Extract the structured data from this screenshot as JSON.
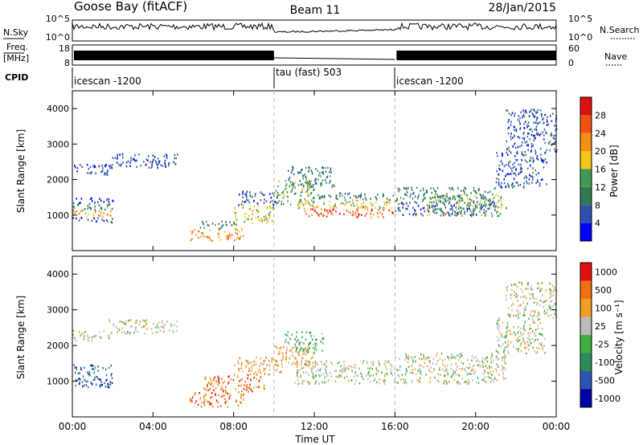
{
  "header": {
    "station": "Goose Bay (fitACF)",
    "beam": "Beam 11",
    "date": "28/Jan/2015"
  },
  "panels": {
    "nsky": {
      "label": "N.Sky",
      "ticks": [
        "10^5",
        "10^0"
      ]
    },
    "nsearch": {
      "label": "N.Search",
      "ticks": [
        "10^5",
        "10^0"
      ]
    },
    "freq": {
      "label1": "Freq.",
      "label2": "[MHz]",
      "ticks": [
        "18",
        "8"
      ]
    },
    "nave": {
      "label": "Nave",
      "ticks": [
        "60",
        "0"
      ]
    },
    "cpid": {
      "label": "CPID",
      "segments": [
        {
          "start": 0,
          "end": 10,
          "text": "icescan -1200"
        },
        {
          "start": 10,
          "end": 16,
          "text": "tau (fast) 503"
        },
        {
          "start": 16,
          "end": 24,
          "text": "icescan -1200"
        }
      ]
    }
  },
  "colors": {
    "power": [
      "#0000ff",
      "#2e4fb0",
      "#2f7a52",
      "#3e9b55",
      "#f5c518",
      "#f59010",
      "#f05010",
      "#e01010"
    ],
    "velocity": [
      "#0000aa",
      "#2a55b5",
      "#2f8a5a",
      "#3fb040",
      "#bbbbbb",
      "#f0a020",
      "#f07010",
      "#e01010"
    ],
    "bg": "#ffffff"
  },
  "chart_data": [
    {
      "type": "heatmap",
      "name": "Power",
      "ylabel": "Slant Range [km]",
      "xlabel": "",
      "xlim": [
        0,
        24
      ],
      "ylim": [
        0,
        4500
      ],
      "y_ticks": [
        1000,
        2000,
        3000,
        4000
      ],
      "x_ticks": [
        0,
        4,
        8,
        12,
        16,
        20,
        24
      ],
      "x_tick_labels": [
        "00:00",
        "04:00",
        "08:00",
        "12:00",
        "16:00",
        "20:00",
        "00:00"
      ],
      "colorbar": {
        "label": "Power [dB]",
        "ticks": [
          "4",
          "8",
          "12",
          "16",
          "20",
          "24",
          "28"
        ]
      },
      "bands": [
        {
          "t0": 0.0,
          "t1": 1.8,
          "r0": 2150,
          "r1": 2450,
          "level": 1
        },
        {
          "t0": 1.8,
          "t1": 5.2,
          "r0": 2350,
          "r1": 2750,
          "level": 1
        },
        {
          "t0": 0.0,
          "t1": 2.0,
          "r0": 1350,
          "r1": 1500,
          "level": 0
        },
        {
          "t0": 0.0,
          "t1": 2.0,
          "r0": 1150,
          "r1": 1350,
          "level": 2
        },
        {
          "t0": 0.0,
          "t1": 2.0,
          "r0": 950,
          "r1": 1150,
          "level": 5
        },
        {
          "t0": 0.0,
          "t1": 2.0,
          "r0": 800,
          "r1": 950,
          "level": 1
        },
        {
          "t0": 5.8,
          "t1": 8.5,
          "r0": 300,
          "r1": 650,
          "level": 5
        },
        {
          "t0": 6.2,
          "t1": 8.3,
          "r0": 650,
          "r1": 850,
          "level": 2
        },
        {
          "t0": 8.0,
          "t1": 10.0,
          "r0": 800,
          "r1": 1300,
          "level": 4
        },
        {
          "t0": 8.2,
          "t1": 10.2,
          "r0": 1300,
          "r1": 1700,
          "level": 1
        },
        {
          "t0": 10.0,
          "t1": 12.0,
          "r0": 1300,
          "r1": 2000,
          "level": 3
        },
        {
          "t0": 10.5,
          "t1": 13.0,
          "r0": 1800,
          "r1": 2400,
          "level": 2
        },
        {
          "t0": 11.5,
          "t1": 16.0,
          "r0": 950,
          "r1": 1200,
          "level": 6
        },
        {
          "t0": 11.0,
          "t1": 16.0,
          "r0": 1200,
          "r1": 1450,
          "level": 4
        },
        {
          "t0": 12.0,
          "t1": 16.0,
          "r0": 1450,
          "r1": 1650,
          "level": 2
        },
        {
          "t0": 16.0,
          "t1": 21.0,
          "r0": 1400,
          "r1": 1800,
          "level": 2
        },
        {
          "t0": 16.0,
          "t1": 21.0,
          "r0": 1000,
          "r1": 1400,
          "level": 1
        },
        {
          "t0": 17.5,
          "t1": 21.5,
          "r0": 1000,
          "r1": 1600,
          "level": 3
        },
        {
          "t0": 21.0,
          "t1": 23.5,
          "r0": 1800,
          "r1": 2800,
          "level": 1
        },
        {
          "t0": 21.5,
          "t1": 24.0,
          "r0": 2800,
          "r1": 4000,
          "level": 1
        }
      ]
    },
    {
      "type": "heatmap",
      "name": "Velocity",
      "ylabel": "Slant Range [km]",
      "xlabel": "Time UT",
      "xlim": [
        0,
        24
      ],
      "ylim": [
        0,
        4500
      ],
      "y_ticks": [
        1000,
        2000,
        3000,
        4000
      ],
      "x_ticks": [
        0,
        4,
        8,
        12,
        16,
        20,
        24
      ],
      "x_tick_labels": [
        "00:00",
        "04:00",
        "08:00",
        "12:00",
        "16:00",
        "20:00",
        "00:00"
      ],
      "colorbar": {
        "label": "Velocity [m s⁻¹]",
        "ticks": [
          "1000",
          "500",
          "100",
          "25",
          "-25",
          "-100",
          "-500",
          "-1000"
        ]
      },
      "bands": [
        {
          "t0": 0.0,
          "t1": 1.8,
          "r0": 2150,
          "r1": 2450,
          "level": 4
        },
        {
          "t0": 1.8,
          "t1": 5.2,
          "r0": 2350,
          "r1": 2750,
          "level": 4
        },
        {
          "t0": 0.0,
          "t1": 2.0,
          "r0": 1350,
          "r1": 1500,
          "level": 1
        },
        {
          "t0": 0.0,
          "t1": 2.0,
          "r0": 850,
          "r1": 1350,
          "level": 1
        },
        {
          "t0": 5.8,
          "t1": 8.5,
          "r0": 300,
          "r1": 700,
          "level": 6
        },
        {
          "t0": 6.5,
          "t1": 9.5,
          "r0": 700,
          "r1": 1200,
          "level": 6
        },
        {
          "t0": 8.0,
          "t1": 10.5,
          "r0": 1200,
          "r1": 1700,
          "level": 5
        },
        {
          "t0": 10.0,
          "t1": 12.0,
          "r0": 1400,
          "r1": 2000,
          "level": 5
        },
        {
          "t0": 10.5,
          "t1": 12.5,
          "r0": 1800,
          "r1": 2400,
          "level": 3
        },
        {
          "t0": 11.0,
          "t1": 16.0,
          "r0": 950,
          "r1": 1600,
          "level": 4
        },
        {
          "t0": 16.0,
          "t1": 21.5,
          "r0": 950,
          "r1": 1800,
          "level": 4
        },
        {
          "t0": 21.0,
          "t1": 23.5,
          "r0": 1800,
          "r1": 2800,
          "level": 4
        },
        {
          "t0": 21.5,
          "t1": 24.0,
          "r0": 2800,
          "r1": 3800,
          "level": 4
        }
      ]
    }
  ]
}
